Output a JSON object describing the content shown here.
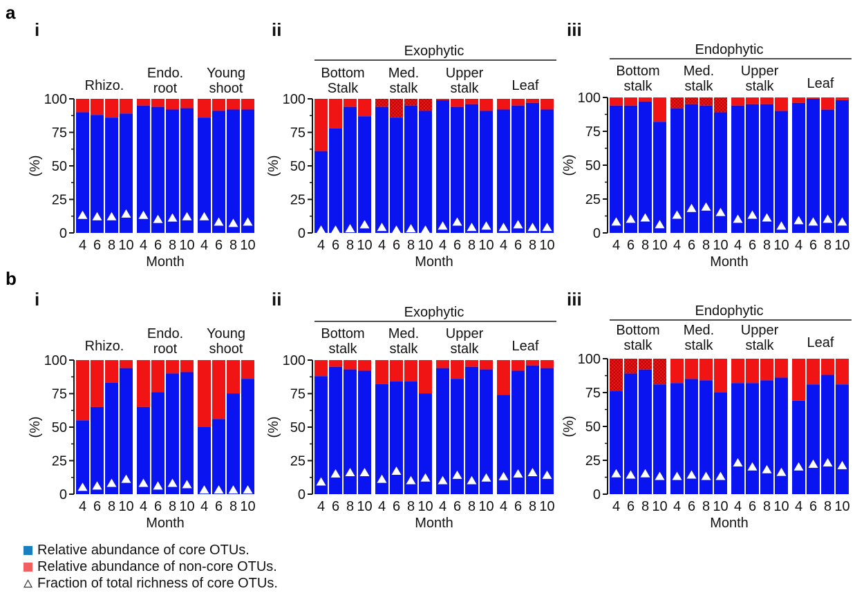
{
  "colors": {
    "core": "#0a14f0",
    "noncore": "#f01414",
    "marker": "#ffffff"
  },
  "panel_letters": [
    "a",
    "b"
  ],
  "legend": {
    "core": "Relative abundance of core OTUs.",
    "noncore": "Relative abundance of non-core OTUs.",
    "richness": "Fraction of total richness of core OTUs.",
    "core_color": "#1a7fc0",
    "noncore_color": "#f06060"
  },
  "chart_data": [
    {
      "type": "bar",
      "stacked": true,
      "row": "a",
      "label": "i",
      "header": "",
      "ylabel": "(%)",
      "xlabel": "Month",
      "ylim": [
        0,
        100
      ],
      "yticks": [
        0,
        25,
        50,
        75,
        100
      ],
      "groups": [
        {
          "title": [
            "Rhizo."
          ],
          "months": [
            "4",
            "6",
            "8",
            "10"
          ],
          "core": [
            90,
            88,
            86,
            89
          ],
          "richness": [
            13,
            12,
            12,
            14
          ]
        },
        {
          "title": [
            "Endo.",
            "root"
          ],
          "months": [
            "4",
            "6",
            "8",
            "10"
          ],
          "core": [
            95,
            94,
            92,
            93
          ],
          "richness": [
            13,
            10,
            11,
            12
          ]
        },
        {
          "title": [
            "Young",
            "shoot"
          ],
          "months": [
            "4",
            "6",
            "8",
            "10"
          ],
          "core": [
            86,
            91,
            92,
            92
          ],
          "richness": [
            12,
            8,
            7,
            8
          ]
        }
      ]
    },
    {
      "type": "bar",
      "stacked": true,
      "row": "a",
      "label": "ii",
      "header": "Exophytic",
      "ylabel": "(%)",
      "xlabel": "Month",
      "ylim": [
        0,
        100
      ],
      "yticks": [
        0,
        25,
        50,
        75,
        100
      ],
      "groups": [
        {
          "title": [
            "Bottom",
            "Stalk"
          ],
          "months": [
            "4",
            "6",
            "8",
            "10"
          ],
          "core": [
            61,
            78,
            94,
            87
          ],
          "richness": [
            2,
            2,
            3,
            6
          ]
        },
        {
          "title": [
            "Med.",
            "stalk"
          ],
          "months": [
            "4",
            "6",
            "8",
            "10"
          ],
          "core": [
            94,
            86,
            95,
            91
          ],
          "hatched": [
            true,
            true,
            true,
            true
          ],
          "richness": [
            4,
            2,
            3,
            2
          ]
        },
        {
          "title": [
            "Upper",
            "stalk"
          ],
          "months": [
            "4",
            "6",
            "8",
            "10"
          ],
          "core": [
            99,
            94,
            96,
            91
          ],
          "richness": [
            5,
            8,
            4,
            5
          ]
        },
        {
          "title": [
            "Leaf"
          ],
          "months": [
            "4",
            "6",
            "8",
            "10"
          ],
          "core": [
            92,
            95,
            97,
            92
          ],
          "richness": [
            4,
            6,
            4,
            4
          ]
        }
      ]
    },
    {
      "type": "bar",
      "stacked": true,
      "row": "a",
      "label": "iii",
      "header": "Endophytic",
      "ylabel": "(%)",
      "xlabel": "Month",
      "ylim": [
        0,
        100
      ],
      "yticks": [
        0,
        25,
        50,
        75,
        100
      ],
      "groups": [
        {
          "title": [
            "Bottom",
            "stalk"
          ],
          "months": [
            "4",
            "6",
            "8",
            "10"
          ],
          "core": [
            94,
            94,
            97,
            82
          ],
          "richness": [
            8,
            10,
            11,
            6
          ]
        },
        {
          "title": [
            "Med.",
            "stalk"
          ],
          "months": [
            "4",
            "6",
            "8",
            "10"
          ],
          "core": [
            92,
            95,
            94,
            89
          ],
          "hatched": [
            true,
            true,
            true,
            true
          ],
          "richness": [
            13,
            18,
            19,
            15
          ]
        },
        {
          "title": [
            "Upper",
            "stalk"
          ],
          "months": [
            "4",
            "6",
            "8",
            "10"
          ],
          "core": [
            94,
            95,
            95,
            90
          ],
          "richness": [
            10,
            13,
            11,
            5
          ]
        },
        {
          "title": [
            "Leaf"
          ],
          "months": [
            "4",
            "6",
            "8",
            "10"
          ],
          "core": [
            96,
            99,
            91,
            98
          ],
          "richness": [
            9,
            8,
            10,
            8
          ]
        }
      ]
    },
    {
      "type": "bar",
      "stacked": true,
      "row": "b",
      "label": "i",
      "header": "",
      "ylabel": "(%)",
      "xlabel": "Month",
      "ylim": [
        0,
        100
      ],
      "yticks": [
        0,
        25,
        50,
        75,
        100
      ],
      "groups": [
        {
          "title": [
            "Rhizo."
          ],
          "months": [
            "4",
            "6",
            "8",
            "10"
          ],
          "core": [
            55,
            65,
            83,
            94
          ],
          "richness": [
            5,
            6,
            8,
            11
          ]
        },
        {
          "title": [
            "Endo.",
            "root"
          ],
          "months": [
            "4",
            "6",
            "8",
            "10"
          ],
          "core": [
            65,
            76,
            90,
            91
          ],
          "richness": [
            8,
            6,
            8,
            7
          ]
        },
        {
          "title": [
            "Young",
            "shoot"
          ],
          "months": [
            "4",
            "6",
            "8",
            "10"
          ],
          "core": [
            50,
            56,
            75,
            86
          ],
          "richness": [
            3,
            3,
            3,
            3
          ]
        }
      ]
    },
    {
      "type": "bar",
      "stacked": true,
      "row": "b",
      "label": "ii",
      "header": "Exophytic",
      "ylabel": "(%)",
      "xlabel": "Month",
      "ylim": [
        0,
        100
      ],
      "yticks": [
        0,
        25,
        50,
        75,
        100
      ],
      "groups": [
        {
          "title": [
            "Bottom",
            "stalk"
          ],
          "months": [
            "4",
            "6",
            "8",
            "10"
          ],
          "core": [
            88,
            95,
            93,
            92
          ],
          "richness": [
            9,
            15,
            16,
            16
          ]
        },
        {
          "title": [
            "Med.",
            "stalk"
          ],
          "months": [
            "4",
            "6",
            "8",
            "10"
          ],
          "core": [
            82,
            84,
            84,
            75
          ],
          "richness": [
            11,
            17,
            10,
            12
          ]
        },
        {
          "title": [
            "Upper",
            "stalk"
          ],
          "months": [
            "4",
            "6",
            "8",
            "10"
          ],
          "core": [
            94,
            86,
            95,
            93
          ],
          "richness": [
            10,
            14,
            10,
            12
          ]
        },
        {
          "title": [
            "Leaf"
          ],
          "months": [
            "4",
            "6",
            "8",
            "10"
          ],
          "core": [
            74,
            92,
            96,
            94
          ],
          "richness": [
            13,
            15,
            16,
            14
          ]
        }
      ]
    },
    {
      "type": "bar",
      "stacked": true,
      "row": "b",
      "label": "iii",
      "header": "Endophytic",
      "ylabel": "(%)",
      "xlabel": "Month",
      "ylim": [
        0,
        100
      ],
      "yticks": [
        0,
        25,
        50,
        75,
        100
      ],
      "groups": [
        {
          "title": [
            "Bottom",
            "stalk"
          ],
          "months": [
            "4",
            "6",
            "8",
            "10"
          ],
          "core": [
            76,
            89,
            92,
            81
          ],
          "hatched": [
            true,
            true,
            true,
            true
          ],
          "richness": [
            15,
            14,
            15,
            13
          ]
        },
        {
          "title": [
            "Med.",
            "stalk"
          ],
          "months": [
            "4",
            "6",
            "8",
            "10"
          ],
          "core": [
            82,
            85,
            84,
            75
          ],
          "richness": [
            13,
            14,
            13,
            13
          ]
        },
        {
          "title": [
            "Upper",
            "stalk"
          ],
          "months": [
            "4",
            "6",
            "8",
            "10"
          ],
          "core": [
            82,
            82,
            84,
            86
          ],
          "richness": [
            23,
            20,
            18,
            16
          ]
        },
        {
          "title": [
            "Leaf"
          ],
          "months": [
            "4",
            "6",
            "8",
            "10"
          ],
          "core": [
            69,
            81,
            88,
            81
          ],
          "richness": [
            20,
            22,
            23,
            21
          ]
        }
      ]
    }
  ]
}
